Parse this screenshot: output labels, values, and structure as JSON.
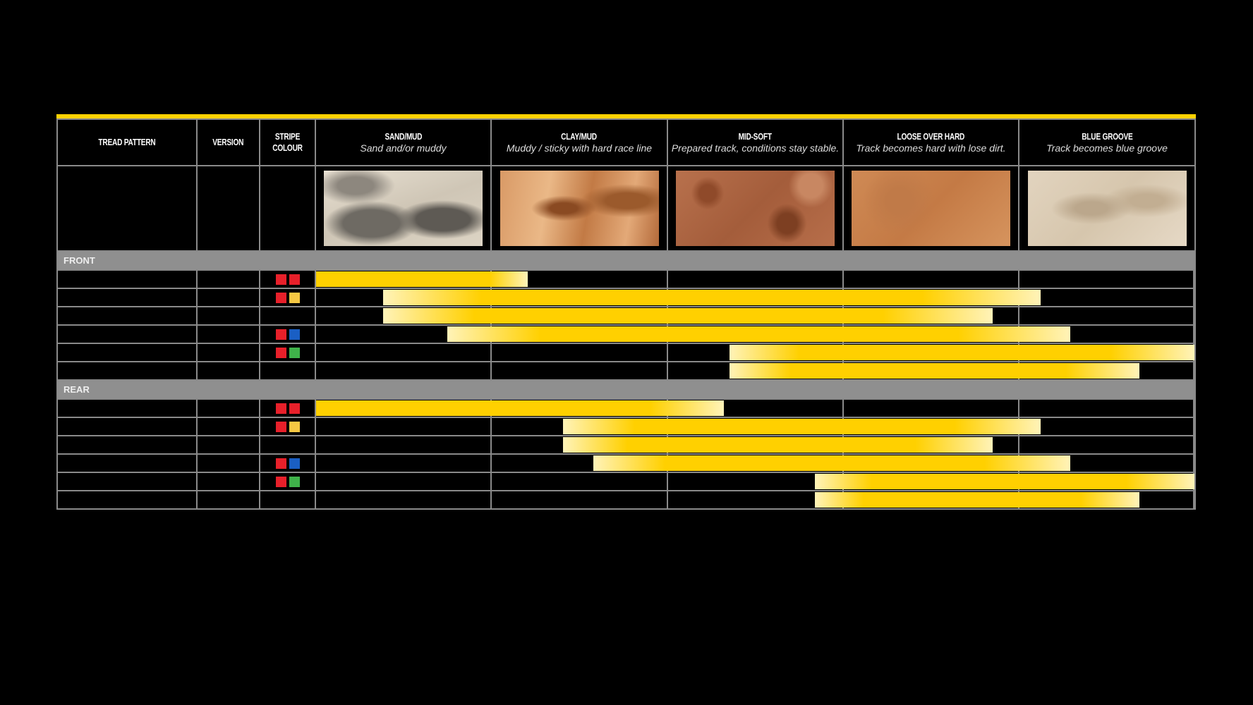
{
  "colors": {
    "accent": "#ffd200",
    "bar_solid": "#ffd000",
    "bar_light": "#fff3b8",
    "red": "#e8202a",
    "yellow": "#f6c843",
    "blue": "#1a5fc4",
    "green": "#3fb24a",
    "section_bg": "#8f8f8f"
  },
  "header": {
    "columns": [
      {
        "title": "Tread Pattern",
        "subtitle": ""
      },
      {
        "title": "Version",
        "subtitle": ""
      },
      {
        "title": "Stripe Colour",
        "subtitle": ""
      },
      {
        "title": "Sand/Mud",
        "subtitle": "Sand and/or muddy",
        "photo": "sand"
      },
      {
        "title": "Clay/Mud",
        "subtitle": "Muddy / sticky with hard race line",
        "photo": "clay"
      },
      {
        "title": "Mid-Soft",
        "subtitle": "Prepared track, conditions stay stable.",
        "photo": "mid"
      },
      {
        "title": "Loose over hard",
        "subtitle": "Track becomes hard with lose dirt.",
        "photo": "loose"
      },
      {
        "title": "Blue groove",
        "subtitle": "Track becomes blue groove",
        "photo": "blue"
      }
    ]
  },
  "sections": [
    {
      "label": "FRONT",
      "rows": [
        {
          "stripes": [
            "red",
            "red"
          ],
          "range_pct": [
            0,
            24.1
          ]
        },
        {
          "stripes": [
            "red",
            "yellow"
          ],
          "range_pct": [
            7.6,
            82.5
          ]
        },
        {
          "stripes": [],
          "range_pct": [
            7.6,
            77.0
          ]
        },
        {
          "stripes": [
            "red",
            "blue"
          ],
          "range_pct": [
            14.9,
            85.9
          ]
        },
        {
          "stripes": [
            "red",
            "green"
          ],
          "range_pct": [
            47.1,
            100
          ]
        },
        {
          "stripes": [],
          "range_pct": [
            47.1,
            93.7
          ]
        }
      ]
    },
    {
      "label": "REAR",
      "rows": [
        {
          "stripes": [
            "red",
            "red"
          ],
          "range_pct": [
            0,
            46.4
          ]
        },
        {
          "stripes": [
            "red",
            "yellow"
          ],
          "range_pct": [
            28.1,
            82.5
          ]
        },
        {
          "stripes": [],
          "range_pct": [
            28.1,
            77.0
          ]
        },
        {
          "stripes": [
            "red",
            "blue"
          ],
          "range_pct": [
            31.6,
            85.9
          ]
        },
        {
          "stripes": [
            "red",
            "green"
          ],
          "range_pct": [
            56.8,
            100
          ]
        },
        {
          "stripes": [],
          "range_pct": [
            56.8,
            93.7
          ]
        }
      ]
    }
  ]
}
